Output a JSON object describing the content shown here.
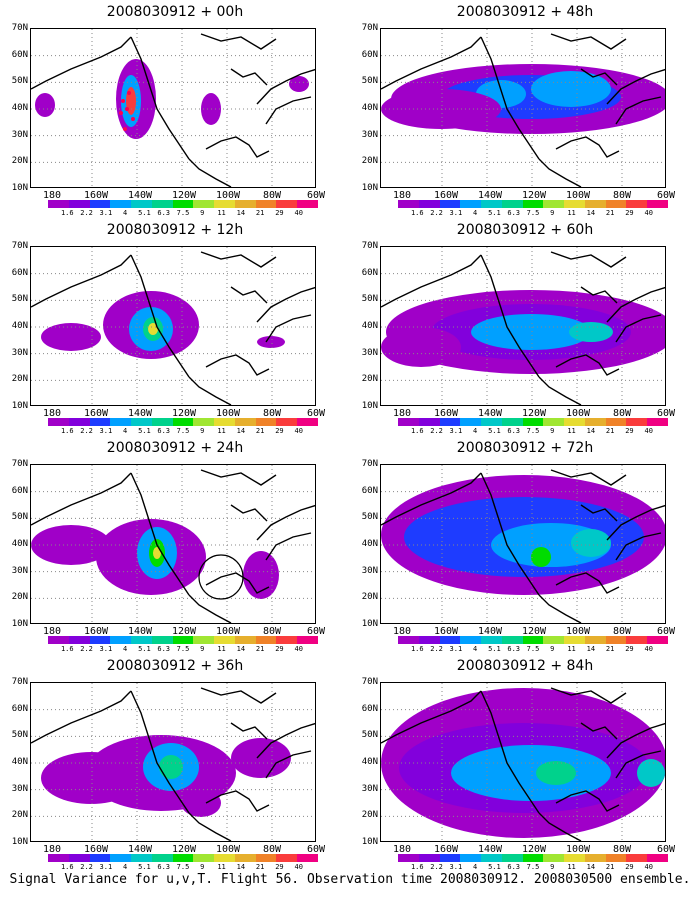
{
  "panels": [
    {
      "title": "2008030912 + 00h",
      "level": 0
    },
    {
      "title": "2008030912 + 12h",
      "level": 1
    },
    {
      "title": "2008030912 + 24h",
      "level": 2
    },
    {
      "title": "2008030912 + 36h",
      "level": 3
    },
    {
      "title": "2008030912 + 48h",
      "level": 4
    },
    {
      "title": "2008030912 + 60h",
      "level": 5
    },
    {
      "title": "2008030912 + 72h",
      "level": 6
    },
    {
      "title": "2008030912 + 84h",
      "level": 7
    }
  ],
  "lat_labels": [
    "70N",
    "60N",
    "50N",
    "40N",
    "30N",
    "20N",
    "10N"
  ],
  "lon_labels": [
    "180",
    "160W",
    "140W",
    "120W",
    "100W",
    "80W",
    "60W"
  ],
  "colorbar": {
    "ticks": [
      "1.6",
      "2.2",
      "3.1",
      "4",
      "5.1",
      "6.3",
      "7.5",
      "9",
      "11",
      "14",
      "21",
      "29",
      "40"
    ],
    "colors": [
      "#a000c8",
      "#8200dc",
      "#1e3cff",
      "#00a0ff",
      "#00c8c8",
      "#00d28c",
      "#00dc00",
      "#a0e632",
      "#e6dc32",
      "#e6af2d",
      "#f08228",
      "#fa3c3c",
      "#f00082"
    ]
  },
  "caption": "Signal Variance for u,v,T. Flight 56. Observation time 2008030912. 2008030500 ensemble."
}
